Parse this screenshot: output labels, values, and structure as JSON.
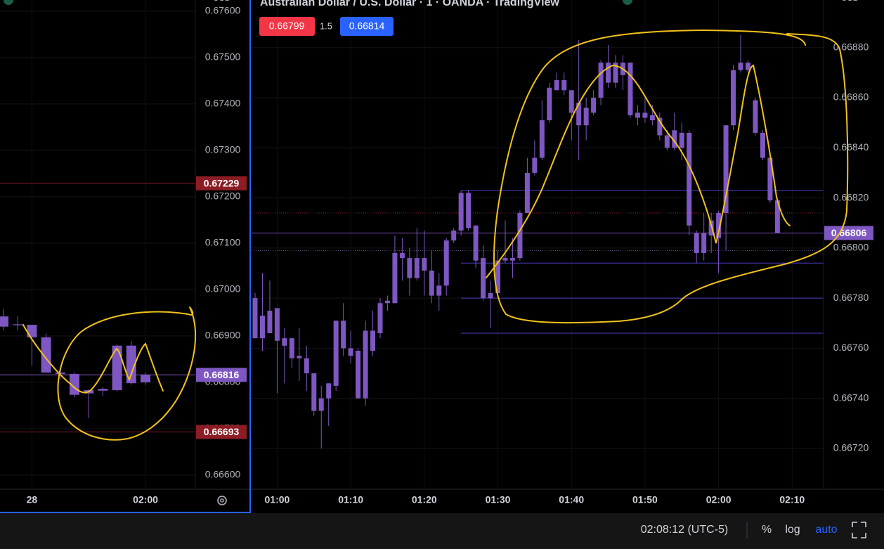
{
  "chart_data": [
    {
      "type": "candlestick",
      "currency": "USD",
      "color": "#7e57c2",
      "grid": true,
      "categories": [
        null,
        null,
        "28",
        null,
        null,
        null,
        null,
        null,
        null,
        null,
        "02:00"
      ],
      "open": [
        0.66942,
        0.66925,
        0.66924,
        0.66897,
        0.66821,
        0.66818,
        0.66776,
        0.66782,
        0.66783,
        0.66879,
        0.668
      ],
      "high": [
        0.66958,
        0.66942,
        0.66924,
        0.66905,
        0.66829,
        0.66821,
        0.66785,
        0.6679,
        0.66882,
        0.66889,
        0.66821
      ],
      "low": [
        0.66912,
        0.66912,
        0.66836,
        0.66821,
        0.66806,
        0.66768,
        0.66723,
        0.6677,
        0.6678,
        0.66795,
        0.66795
      ],
      "close": [
        0.6692,
        0.66923,
        0.66897,
        0.66821,
        0.66818,
        0.66773,
        0.66783,
        0.66786,
        0.66879,
        0.66798,
        0.66816
      ],
      "ylim": [
        0.66571,
        0.67624
      ],
      "yticks": [
        {
          "value": 0.676,
          "label": "0.67600"
        },
        {
          "value": 0.675,
          "label": "0.67500"
        },
        {
          "value": 0.674,
          "label": "0.67400"
        },
        {
          "value": 0.673,
          "label": "0.67300"
        },
        {
          "value": 0.672,
          "label": "0.67200"
        },
        {
          "value": 0.671,
          "label": "0.67100"
        },
        {
          "value": 0.67,
          "label": "0.67000"
        },
        {
          "value": 0.669,
          "label": "0.66900"
        },
        {
          "value": 0.668,
          "label": "0.66800"
        },
        {
          "value": 0.667,
          "label": "0.66700"
        },
        {
          "value": 0.666,
          "label": "0.66600"
        }
      ],
      "price_lines": [
        {
          "value": 0.67229,
          "color": "#8c1d24"
        },
        {
          "value": 0.66816,
          "color": "#7e57c2"
        },
        {
          "value": 0.66693,
          "color": "#8c1d24"
        }
      ]
    },
    {
      "type": "candlestick",
      "title": "Australian Dollar / U.S. Dollar · 1 · OANDA · TradingView",
      "currency": "USD",
      "color": "#7e57c2",
      "grid": true,
      "bid": 0.66799,
      "spread": 1.5,
      "ask": 0.66814,
      "categories": [
        null,
        null,
        null,
        "01:00",
        null,
        null,
        null,
        null,
        null,
        null,
        null,
        null,
        null,
        "01:10",
        null,
        null,
        null,
        null,
        null,
        null,
        null,
        null,
        null,
        "01:20",
        null,
        null,
        null,
        null,
        null,
        null,
        null,
        null,
        null,
        "01:30",
        null,
        null,
        null,
        null,
        null,
        null,
        null,
        null,
        null,
        "01:40",
        null,
        null,
        null,
        null,
        null,
        null,
        null,
        null,
        null,
        "01:50",
        null,
        null,
        null,
        null,
        null,
        null,
        null,
        null,
        null,
        "02:00",
        null,
        null,
        null,
        null,
        null,
        null,
        null,
        null,
        null,
        "02:10"
      ],
      "open": [
        0.6678,
        0.66764,
        0.66775,
        0.66776,
        0.66764,
        0.66764,
        0.66757,
        0.66756,
        0.6675,
        0.66735,
        0.6674,
        0.66745,
        0.66771,
        0.6676,
        0.66759,
        0.6674,
        0.66759,
        0.66766,
        0.66778,
        0.66778,
        0.66798,
        0.66796,
        0.66788,
        0.66796,
        0.66791,
        0.66781,
        0.66785,
        0.66803,
        0.66807,
        0.66822,
        0.66809,
        0.66796,
        0.6678,
        0.66782,
        0.66795,
        0.66796,
        0.66796,
        0.66814,
        0.6683,
        0.66836,
        0.66851,
        0.66863,
        0.66867,
        0.66863,
        0.66849,
        0.66856,
        0.66854,
        0.6686,
        0.66874,
        0.66866,
        0.66874,
        0.66874,
        0.66854,
        0.66852,
        0.66853,
        0.66852,
        0.66845,
        0.6684,
        0.66846,
        0.66846,
        0.66806,
        0.66798,
        0.66805,
        0.66814,
        0.66814,
        0.66849,
        0.66871,
        0.66874,
        0.66859,
        0.66846,
        0.66836,
        0.66819,
        null,
        null
      ],
      "high": [
        0.66782,
        0.6679,
        0.66787,
        0.66776,
        0.66768,
        0.66764,
        0.66768,
        0.66761,
        0.6675,
        0.66745,
        0.66746,
        0.66771,
        0.66778,
        0.66767,
        0.6676,
        0.66771,
        0.66775,
        0.6678,
        0.66781,
        0.66805,
        0.66804,
        0.668,
        0.66808,
        0.66807,
        0.66799,
        0.6679,
        0.66804,
        0.66808,
        0.66823,
        0.66823,
        0.66809,
        0.66801,
        0.66787,
        0.66799,
        0.66811,
        0.66804,
        0.66815,
        0.66836,
        0.66843,
        0.66859,
        0.66866,
        0.6687,
        0.6687,
        0.66863,
        0.66883,
        0.6686,
        0.66863,
        0.66875,
        0.66881,
        0.66877,
        0.66877,
        0.66874,
        0.66857,
        0.6686,
        0.66857,
        0.66854,
        0.66847,
        0.66854,
        0.6685,
        0.66847,
        0.66807,
        0.66814,
        0.66814,
        0.66815,
        0.66849,
        0.66873,
        0.66885,
        0.66875,
        0.6686,
        0.66847,
        0.66838,
        0.66819,
        null,
        null
      ],
      "low": [
        0.66764,
        0.66759,
        0.66766,
        0.66742,
        0.66746,
        0.66752,
        0.66747,
        0.66743,
        0.66733,
        0.6672,
        0.66729,
        0.66743,
        0.66757,
        0.66754,
        0.6674,
        0.66737,
        0.66757,
        0.66764,
        0.66775,
        0.66778,
        0.66787,
        0.66781,
        0.66787,
        0.66781,
        0.66778,
        0.66775,
        0.66781,
        0.66802,
        0.66805,
        0.66807,
        0.66792,
        0.66779,
        0.66768,
        0.66781,
        0.66794,
        0.66788,
        0.66795,
        0.66814,
        0.66829,
        0.66835,
        0.6685,
        0.66863,
        0.66861,
        0.66843,
        0.66835,
        0.66843,
        0.66853,
        0.66857,
        0.66864,
        0.66864,
        0.66863,
        0.66852,
        0.66849,
        0.6685,
        0.66849,
        0.66843,
        0.66839,
        0.66839,
        0.66835,
        0.66805,
        0.66794,
        0.66795,
        0.66798,
        0.6679,
        0.66799,
        0.66847,
        0.6687,
        0.6687,
        0.66845,
        0.66835,
        0.66818,
        0.66806,
        null,
        null
      ],
      "close": [
        0.66764,
        0.66773,
        0.66766,
        0.66763,
        0.66761,
        0.66756,
        0.66756,
        0.6675,
        0.66735,
        0.6674,
        0.66746,
        0.66771,
        0.6676,
        0.66757,
        0.6674,
        0.66767,
        0.66767,
        0.66778,
        0.66779,
        0.66798,
        0.66796,
        0.66788,
        0.66796,
        0.66791,
        0.66781,
        0.66785,
        0.66803,
        0.66807,
        0.66822,
        0.66808,
        0.66795,
        0.6678,
        0.66782,
        0.66795,
        0.66796,
        0.66795,
        0.66814,
        0.6683,
        0.66836,
        0.66851,
        0.66864,
        0.66867,
        0.66863,
        0.66854,
        0.66858,
        0.66849,
        0.6686,
        0.66874,
        0.66866,
        0.66874,
        0.66869,
        0.66853,
        0.66852,
        0.66854,
        0.66851,
        0.66845,
        0.6684,
        0.66847,
        0.6684,
        0.66809,
        0.66798,
        0.66806,
        0.66811,
        0.66804,
        0.66849,
        0.66871,
        0.66874,
        0.66871,
        0.66846,
        0.66836,
        0.66819,
        0.66806,
        null,
        null
      ],
      "ylim": [
        0.66704,
        0.66899
      ],
      "yticks": [
        {
          "value": 0.6688,
          "label": "0.66880"
        },
        {
          "value": 0.6686,
          "label": "0.66860"
        },
        {
          "value": 0.6684,
          "label": "0.66840"
        },
        {
          "value": 0.6682,
          "label": "0.66820"
        },
        {
          "value": 0.668,
          "label": "0.66800"
        },
        {
          "value": 0.6678,
          "label": "0.66780"
        },
        {
          "value": 0.6676,
          "label": "0.66760"
        },
        {
          "value": 0.6674,
          "label": "0.66740"
        },
        {
          "value": 0.6672,
          "label": "0.66720"
        }
      ],
      "price_lines": [
        {
          "value": 0.66806,
          "color": "#7e57c2"
        }
      ],
      "levels": [
        0.66823,
        0.66794,
        0.6678,
        0.66766
      ],
      "level_color": "#4b3fc4"
    }
  ],
  "status_bar": {
    "time": "02:08:12 (UTC-5)",
    "percent": "%",
    "log": "log",
    "auto": "auto"
  }
}
